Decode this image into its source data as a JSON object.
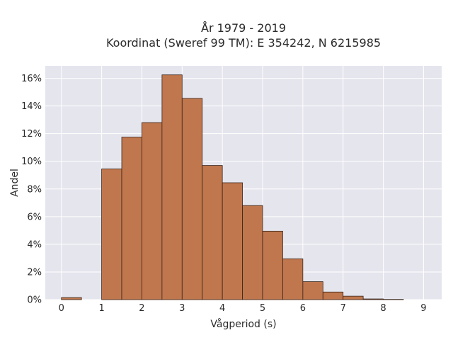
{
  "chart_data": {
    "type": "bar",
    "title_line1": "År 1979 - 2019",
    "title_line2": "Koordinat (Sweref 99 TM): E 354242, N 6215985",
    "xlabel": "Vågperiod (s)",
    "ylabel": "Andel",
    "bin_width": 0.5,
    "bins": [
      {
        "start": 0.0,
        "value": 0.15
      },
      {
        "start": 0.5,
        "value": 0.0
      },
      {
        "start": 1.0,
        "value": 9.45
      },
      {
        "start": 1.5,
        "value": 11.75
      },
      {
        "start": 2.0,
        "value": 12.8
      },
      {
        "start": 2.5,
        "value": 16.25
      },
      {
        "start": 3.0,
        "value": 14.55
      },
      {
        "start": 3.5,
        "value": 9.7
      },
      {
        "start": 4.0,
        "value": 8.45
      },
      {
        "start": 4.5,
        "value": 6.8
      },
      {
        "start": 5.0,
        "value": 4.95
      },
      {
        "start": 5.5,
        "value": 2.95
      },
      {
        "start": 6.0,
        "value": 1.3
      },
      {
        "start": 6.5,
        "value": 0.55
      },
      {
        "start": 7.0,
        "value": 0.25
      },
      {
        "start": 7.5,
        "value": 0.05
      },
      {
        "start": 8.0,
        "value": 0.02
      }
    ],
    "xlim": [
      -0.4,
      9.45
    ],
    "ylim": [
      0,
      16.9
    ],
    "x_ticks": [
      "0",
      "1",
      "2",
      "3",
      "4",
      "5",
      "6",
      "7",
      "8",
      "9"
    ],
    "y_ticks": [
      "0%",
      "2%",
      "4%",
      "6%",
      "8%",
      "10%",
      "12%",
      "14%",
      "16%"
    ],
    "grid": true,
    "bar_color": "#c0774d",
    "bar_edge_color": "#3a2418",
    "plot_bg": "#e5e5ee",
    "grid_color": "#ffffff"
  }
}
